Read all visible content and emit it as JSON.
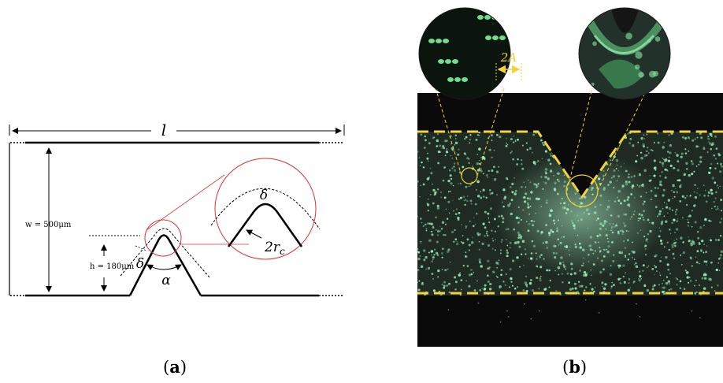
{
  "panel_a": {
    "length_label": "l",
    "width_label": "w = 500μm",
    "height_label": "h = 180μm",
    "delta_label": "δ",
    "alpha_label": "α",
    "zoom_delta_label": "δ",
    "radius_label": "2r",
    "radius_subscript": "c",
    "caption_open": "(",
    "caption_letter": "a",
    "caption_close": ")"
  },
  "panel_b": {
    "amplitude_label": "2A",
    "caption_open": "(",
    "caption_letter": "b",
    "caption_close": ")"
  },
  "colors": {
    "outline": "#000000",
    "zoom_circle": "#e03030",
    "dashed_guide": "#f2d33a",
    "particle": "#9af2b8",
    "background_dark": "#0a0a0a"
  }
}
